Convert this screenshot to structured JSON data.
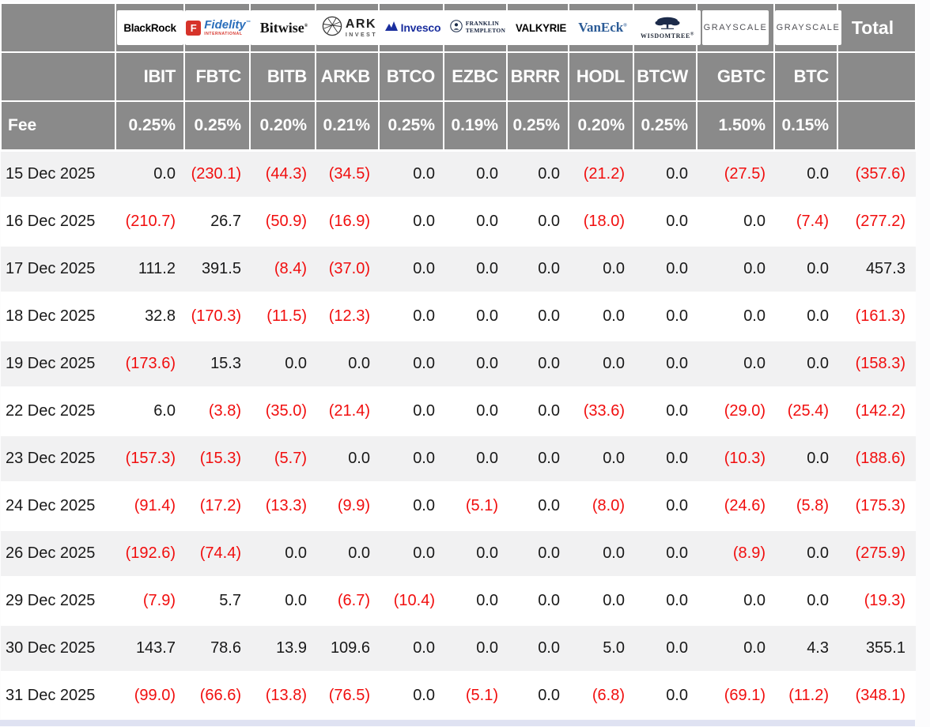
{
  "colors": {
    "header_bg": "#8a8a8a",
    "header_text": "#ffffff",
    "row_stripe": "#f1f1f2",
    "row_white": "#ffffff",
    "negative_red": "#f10e0e",
    "text_black": "#191919",
    "summary_strip": "#dfe2f2"
  },
  "table": {
    "fee_label": "Fee",
    "total_label": "Total",
    "providers": [
      {
        "key": "blackrock",
        "name": "BlackRock",
        "ticker": "IBIT",
        "fee": "0.25%",
        "logo": {
          "text": "BlackRock"
        }
      },
      {
        "key": "fidelity",
        "name": "Fidelity International",
        "ticker": "FBTC",
        "fee": "0.25%",
        "logo": {
          "mark": "F",
          "text": "Fidelity",
          "tm": "™",
          "sub": "INTERNATIONAL"
        }
      },
      {
        "key": "bitwise",
        "name": "Bitwise",
        "ticker": "BITB",
        "fee": "0.20%",
        "logo": {
          "text": "Bitwise",
          "tm": "®"
        }
      },
      {
        "key": "ark",
        "name": "ARK Invest",
        "ticker": "ARKB",
        "fee": "0.21%",
        "logo": {
          "text": "ARK",
          "sub": "INVEST"
        }
      },
      {
        "key": "invesco",
        "name": "Invesco",
        "ticker": "BTCO",
        "fee": "0.25%",
        "logo": {
          "text": "Invesco"
        }
      },
      {
        "key": "franklin",
        "name": "Franklin Templeton",
        "ticker": "EZBC",
        "fee": "0.19%",
        "logo": {
          "text": "FRANKLIN",
          "sub": "TEMPLETON"
        }
      },
      {
        "key": "valkyrie",
        "name": "Valkyrie",
        "ticker": "BRRR",
        "fee": "0.25%",
        "logo": {
          "text": "VALKYRIE"
        }
      },
      {
        "key": "vaneck",
        "name": "VanEck",
        "ticker": "HODL",
        "fee": "0.20%",
        "logo": {
          "text": "VanEck",
          "tm": "®"
        }
      },
      {
        "key": "wisdomtree",
        "name": "WisdomTree",
        "ticker": "BTCW",
        "fee": "0.25%",
        "logo": {
          "text": "WISDOMTREE",
          "tm": "®"
        }
      },
      {
        "key": "grayscale",
        "name": "Grayscale",
        "ticker": "GBTC",
        "fee": "1.50%",
        "logo": {
          "text": "GRAYSCALE"
        }
      },
      {
        "key": "grayscale",
        "name": "Grayscale",
        "ticker": "BTC",
        "fee": "0.15%",
        "logo": {
          "text": "GRAYSCALE"
        }
      }
    ]
  },
  "chart_data": {
    "type": "table",
    "columns": [
      "IBIT",
      "FBTC",
      "BITB",
      "ARKB",
      "BTCO",
      "EZBC",
      "BRRR",
      "HODL",
      "BTCW",
      "GBTC",
      "BTC",
      "Total"
    ],
    "fees_pct": [
      0.25,
      0.25,
      0.2,
      0.21,
      0.25,
      0.19,
      0.25,
      0.2,
      0.25,
      1.5,
      0.15
    ],
    "negative_style": "red text in parentheses",
    "rows": [
      {
        "date": "15 Dec 2025",
        "values": [
          0.0,
          -230.1,
          -44.3,
          -34.5,
          0.0,
          0.0,
          0.0,
          -21.2,
          0.0,
          -27.5,
          0.0
        ],
        "total": -357.6
      },
      {
        "date": "16 Dec 2025",
        "values": [
          -210.7,
          26.7,
          -50.9,
          -16.9,
          0.0,
          0.0,
          0.0,
          -18.0,
          0.0,
          0.0,
          -7.4
        ],
        "total": -277.2
      },
      {
        "date": "17 Dec 2025",
        "values": [
          111.2,
          391.5,
          -8.4,
          -37.0,
          0.0,
          0.0,
          0.0,
          0.0,
          0.0,
          0.0,
          0.0
        ],
        "total": 457.3
      },
      {
        "date": "18 Dec 2025",
        "values": [
          32.8,
          -170.3,
          -11.5,
          -12.3,
          0.0,
          0.0,
          0.0,
          0.0,
          0.0,
          0.0,
          0.0
        ],
        "total": -161.3
      },
      {
        "date": "19 Dec 2025",
        "values": [
          -173.6,
          15.3,
          0.0,
          0.0,
          0.0,
          0.0,
          0.0,
          0.0,
          0.0,
          0.0,
          0.0
        ],
        "total": -158.3
      },
      {
        "date": "22 Dec 2025",
        "values": [
          6.0,
          -3.8,
          -35.0,
          -21.4,
          0.0,
          0.0,
          0.0,
          -33.6,
          0.0,
          -29.0,
          -25.4
        ],
        "total": -142.2
      },
      {
        "date": "23 Dec 2025",
        "values": [
          -157.3,
          -15.3,
          -5.7,
          0.0,
          0.0,
          0.0,
          0.0,
          0.0,
          0.0,
          -10.3,
          0.0
        ],
        "total": -188.6
      },
      {
        "date": "24 Dec 2025",
        "values": [
          -91.4,
          -17.2,
          -13.3,
          -9.9,
          0.0,
          -5.1,
          0.0,
          -8.0,
          0.0,
          -24.6,
          -5.8
        ],
        "total": -175.3
      },
      {
        "date": "26 Dec 2025",
        "values": [
          -192.6,
          -74.4,
          0.0,
          0.0,
          0.0,
          0.0,
          0.0,
          0.0,
          0.0,
          -8.9,
          0.0
        ],
        "total": -275.9
      },
      {
        "date": "29 Dec 2025",
        "values": [
          -7.9,
          5.7,
          0.0,
          -6.7,
          -10.4,
          0.0,
          0.0,
          0.0,
          0.0,
          0.0,
          0.0
        ],
        "total": -19.3
      },
      {
        "date": "30 Dec 2025",
        "values": [
          143.7,
          78.6,
          13.9,
          109.6,
          0.0,
          0.0,
          0.0,
          5.0,
          0.0,
          0.0,
          4.3
        ],
        "total": 355.1
      },
      {
        "date": "31 Dec 2025",
        "values": [
          -99.0,
          -66.6,
          -13.8,
          -76.5,
          0.0,
          -5.1,
          0.0,
          -6.8,
          0.0,
          -69.1,
          -11.2
        ],
        "total": -348.1
      }
    ]
  }
}
